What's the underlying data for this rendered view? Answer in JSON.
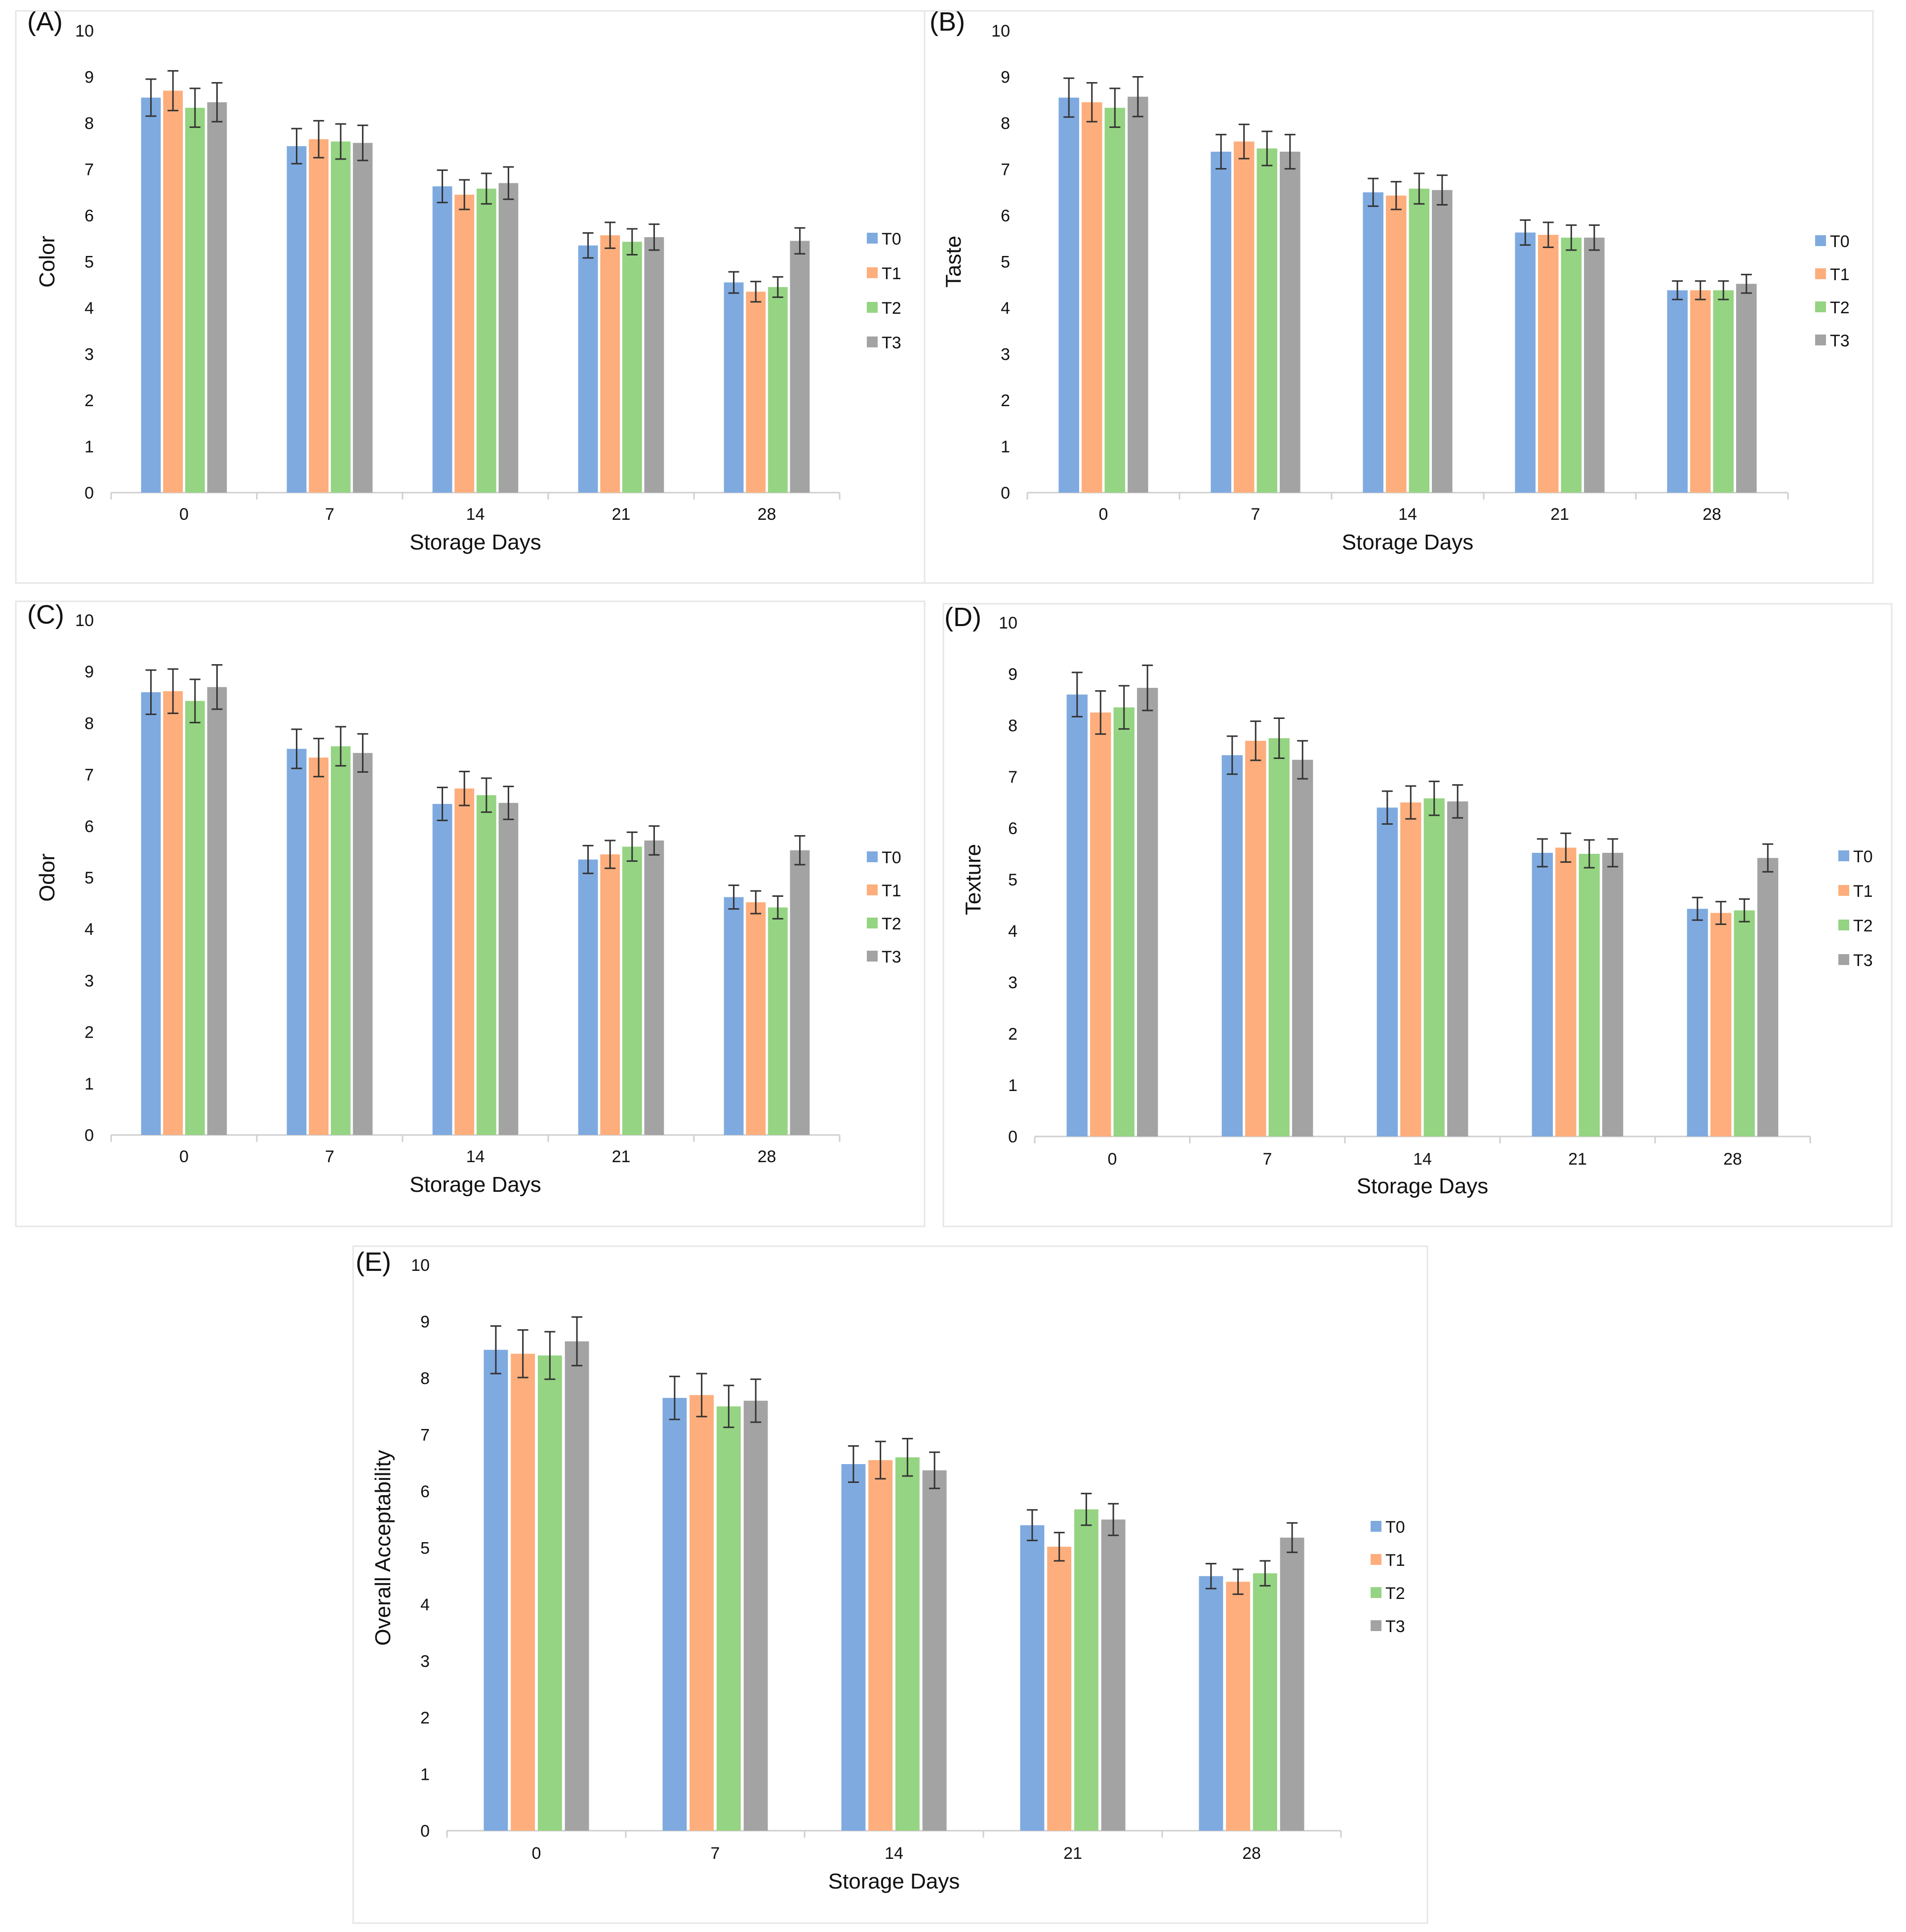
{
  "figure": {
    "series_names": [
      "T0",
      "T1",
      "T2",
      "T3"
    ],
    "series_colors": [
      "#7FAAE0",
      "#FDAE7C",
      "#95D482",
      "#A3A3A3"
    ]
  },
  "chart_data": [
    {
      "panel": "(A)",
      "type": "bar",
      "xlabel": "Storage Days",
      "ylabel": "Color",
      "categories": [
        "0",
        "7",
        "14",
        "21",
        "28"
      ],
      "ylim": [
        0,
        10
      ],
      "yticks": [
        "0",
        "1",
        "2",
        "3",
        "4",
        "5",
        "6",
        "7",
        "8",
        "9",
        "10"
      ],
      "series": [
        {
          "name": "T0",
          "values": [
            8.55,
            7.5,
            6.63,
            5.35,
            4.55
          ],
          "errors": [
            0.4,
            0.38,
            0.35,
            0.27,
            0.23
          ]
        },
        {
          "name": "T1",
          "values": [
            8.7,
            7.65,
            6.45,
            5.57,
            4.35
          ],
          "errors": [
            0.43,
            0.4,
            0.32,
            0.28,
            0.22
          ]
        },
        {
          "name": "T2",
          "values": [
            8.33,
            7.6,
            6.58,
            5.43,
            4.45
          ],
          "errors": [
            0.42,
            0.38,
            0.33,
            0.28,
            0.22
          ]
        },
        {
          "name": "T3",
          "values": [
            8.45,
            7.57,
            6.7,
            5.53,
            5.45
          ],
          "errors": [
            0.42,
            0.38,
            0.35,
            0.28,
            0.28
          ]
        }
      ]
    },
    {
      "panel": "(B)",
      "type": "bar",
      "xlabel": "Storage Days",
      "ylabel": "Taste",
      "categories": [
        "0",
        "7",
        "14",
        "21",
        "28"
      ],
      "ylim": [
        0,
        10
      ],
      "yticks": [
        "0",
        "1",
        "2",
        "3",
        "4",
        "5",
        "6",
        "7",
        "8",
        "9",
        "10"
      ],
      "series": [
        {
          "name": "T0",
          "values": [
            8.55,
            7.38,
            6.5,
            5.63,
            4.38
          ],
          "errors": [
            0.42,
            0.37,
            0.3,
            0.27,
            0.2
          ]
        },
        {
          "name": "T1",
          "values": [
            8.45,
            7.6,
            6.43,
            5.58,
            4.38
          ],
          "errors": [
            0.42,
            0.37,
            0.3,
            0.27,
            0.2
          ]
        },
        {
          "name": "T2",
          "values": [
            8.33,
            7.45,
            6.58,
            5.52,
            4.38
          ],
          "errors": [
            0.42,
            0.37,
            0.33,
            0.27,
            0.2
          ]
        },
        {
          "name": "T3",
          "values": [
            8.57,
            7.38,
            6.55,
            5.52,
            4.52
          ],
          "errors": [
            0.43,
            0.37,
            0.32,
            0.27,
            0.2
          ]
        }
      ]
    },
    {
      "panel": "(C)",
      "type": "bar",
      "xlabel": "Storage Days",
      "ylabel": "Odor",
      "categories": [
        "0",
        "7",
        "14",
        "21",
        "28"
      ],
      "ylim": [
        0,
        10
      ],
      "yticks": [
        "0",
        "1",
        "2",
        "3",
        "4",
        "5",
        "6",
        "7",
        "8",
        "9",
        "10"
      ],
      "series": [
        {
          "name": "T0",
          "values": [
            8.6,
            7.5,
            6.43,
            5.35,
            4.62
          ],
          "errors": [
            0.43,
            0.38,
            0.32,
            0.27,
            0.23
          ]
        },
        {
          "name": "T1",
          "values": [
            8.62,
            7.33,
            6.73,
            5.45,
            4.52
          ],
          "errors": [
            0.43,
            0.37,
            0.33,
            0.27,
            0.22
          ]
        },
        {
          "name": "T2",
          "values": [
            8.43,
            7.55,
            6.6,
            5.6,
            4.42
          ],
          "errors": [
            0.42,
            0.38,
            0.33,
            0.28,
            0.22
          ]
        },
        {
          "name": "T3",
          "values": [
            8.7,
            7.42,
            6.45,
            5.72,
            5.53
          ],
          "errors": [
            0.43,
            0.37,
            0.32,
            0.28,
            0.28
          ]
        }
      ]
    },
    {
      "panel": "(D)",
      "type": "bar",
      "xlabel": "Storage Days",
      "ylabel": "Texture",
      "categories": [
        "0",
        "7",
        "14",
        "21",
        "28"
      ],
      "ylim": [
        0,
        10
      ],
      "yticks": [
        "0",
        "1",
        "2",
        "3",
        "4",
        "5",
        "6",
        "7",
        "8",
        "9",
        "10"
      ],
      "series": [
        {
          "name": "T0",
          "values": [
            8.6,
            7.42,
            6.4,
            5.52,
            4.43
          ],
          "errors": [
            0.43,
            0.37,
            0.32,
            0.27,
            0.22
          ]
        },
        {
          "name": "T1",
          "values": [
            8.25,
            7.7,
            6.5,
            5.62,
            4.35
          ],
          "errors": [
            0.42,
            0.38,
            0.32,
            0.28,
            0.22
          ]
        },
        {
          "name": "T2",
          "values": [
            8.35,
            7.75,
            6.58,
            5.5,
            4.4
          ],
          "errors": [
            0.42,
            0.39,
            0.33,
            0.27,
            0.22
          ]
        },
        {
          "name": "T3",
          "values": [
            8.73,
            7.33,
            6.52,
            5.52,
            5.42
          ],
          "errors": [
            0.44,
            0.37,
            0.32,
            0.27,
            0.27
          ]
        }
      ]
    },
    {
      "panel": "(E)",
      "type": "bar",
      "xlabel": "Storage Days",
      "ylabel": "Overall Acceptability",
      "categories": [
        "0",
        "7",
        "14",
        "21",
        "28"
      ],
      "ylim": [
        0,
        10
      ],
      "yticks": [
        "0",
        "1",
        "2",
        "3",
        "4",
        "5",
        "6",
        "7",
        "8",
        "9",
        "10"
      ],
      "series": [
        {
          "name": "T0",
          "values": [
            8.5,
            7.65,
            6.48,
            5.4,
            4.5
          ],
          "errors": [
            0.42,
            0.38,
            0.32,
            0.27,
            0.22
          ]
        },
        {
          "name": "T1",
          "values": [
            8.43,
            7.7,
            6.55,
            5.02,
            4.4
          ],
          "errors": [
            0.42,
            0.38,
            0.33,
            0.25,
            0.22
          ]
        },
        {
          "name": "T2",
          "values": [
            8.4,
            7.5,
            6.6,
            5.68,
            4.55
          ],
          "errors": [
            0.42,
            0.37,
            0.33,
            0.28,
            0.22
          ]
        },
        {
          "name": "T3",
          "values": [
            8.65,
            7.6,
            6.37,
            5.5,
            5.18
          ],
          "errors": [
            0.43,
            0.38,
            0.32,
            0.28,
            0.26
          ]
        }
      ]
    }
  ]
}
